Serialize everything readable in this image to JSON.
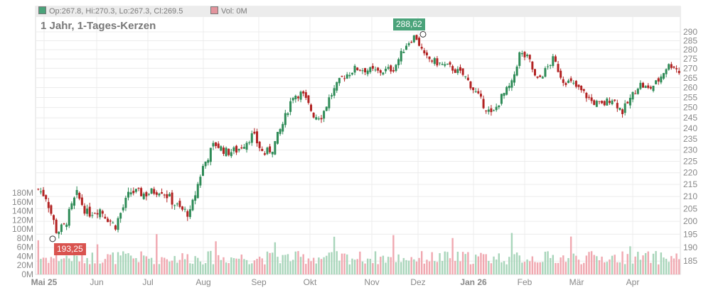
{
  "legend": {
    "ohlc_text": "Op:267.8, Hi:270.3, Lo:267.3, Cl:269.5",
    "volume_text": "Vol: 0M",
    "up_color": "#4aa37a",
    "down_color": "#e3949d"
  },
  "chart_data": {
    "type": "candlestick",
    "title": "1 Jahr, 1-Tages-Kerzen",
    "price_axis": {
      "ticks": [
        185,
        190,
        195,
        200,
        205,
        210,
        215,
        220,
        225,
        230,
        235,
        240,
        245,
        250,
        255,
        260,
        265,
        270,
        275,
        280,
        285,
        290
      ],
      "min": 182,
      "max": 292,
      "scale": "log"
    },
    "volume_axis": {
      "ticks": [
        "0M",
        "20M",
        "40M",
        "60M",
        "80M",
        "100M",
        "120M",
        "140M",
        "160M",
        "180M"
      ],
      "max": 180
    },
    "x_labels": [
      "Mai 25",
      "Jun",
      "Jul",
      "Aug",
      "Sep",
      "Okt",
      "Nov",
      "Dez",
      "Jan 26",
      "Feb",
      "Mär",
      "Apr"
    ],
    "high_marker": {
      "label": "288,62",
      "value": 288.62
    },
    "low_marker": {
      "label": "193,25",
      "value": 193.25
    },
    "up_color": "#2e8b57",
    "down_color": "#b22222",
    "vol_up_color": "#a8d5ba",
    "vol_down_color": "#f0a8b0"
  }
}
